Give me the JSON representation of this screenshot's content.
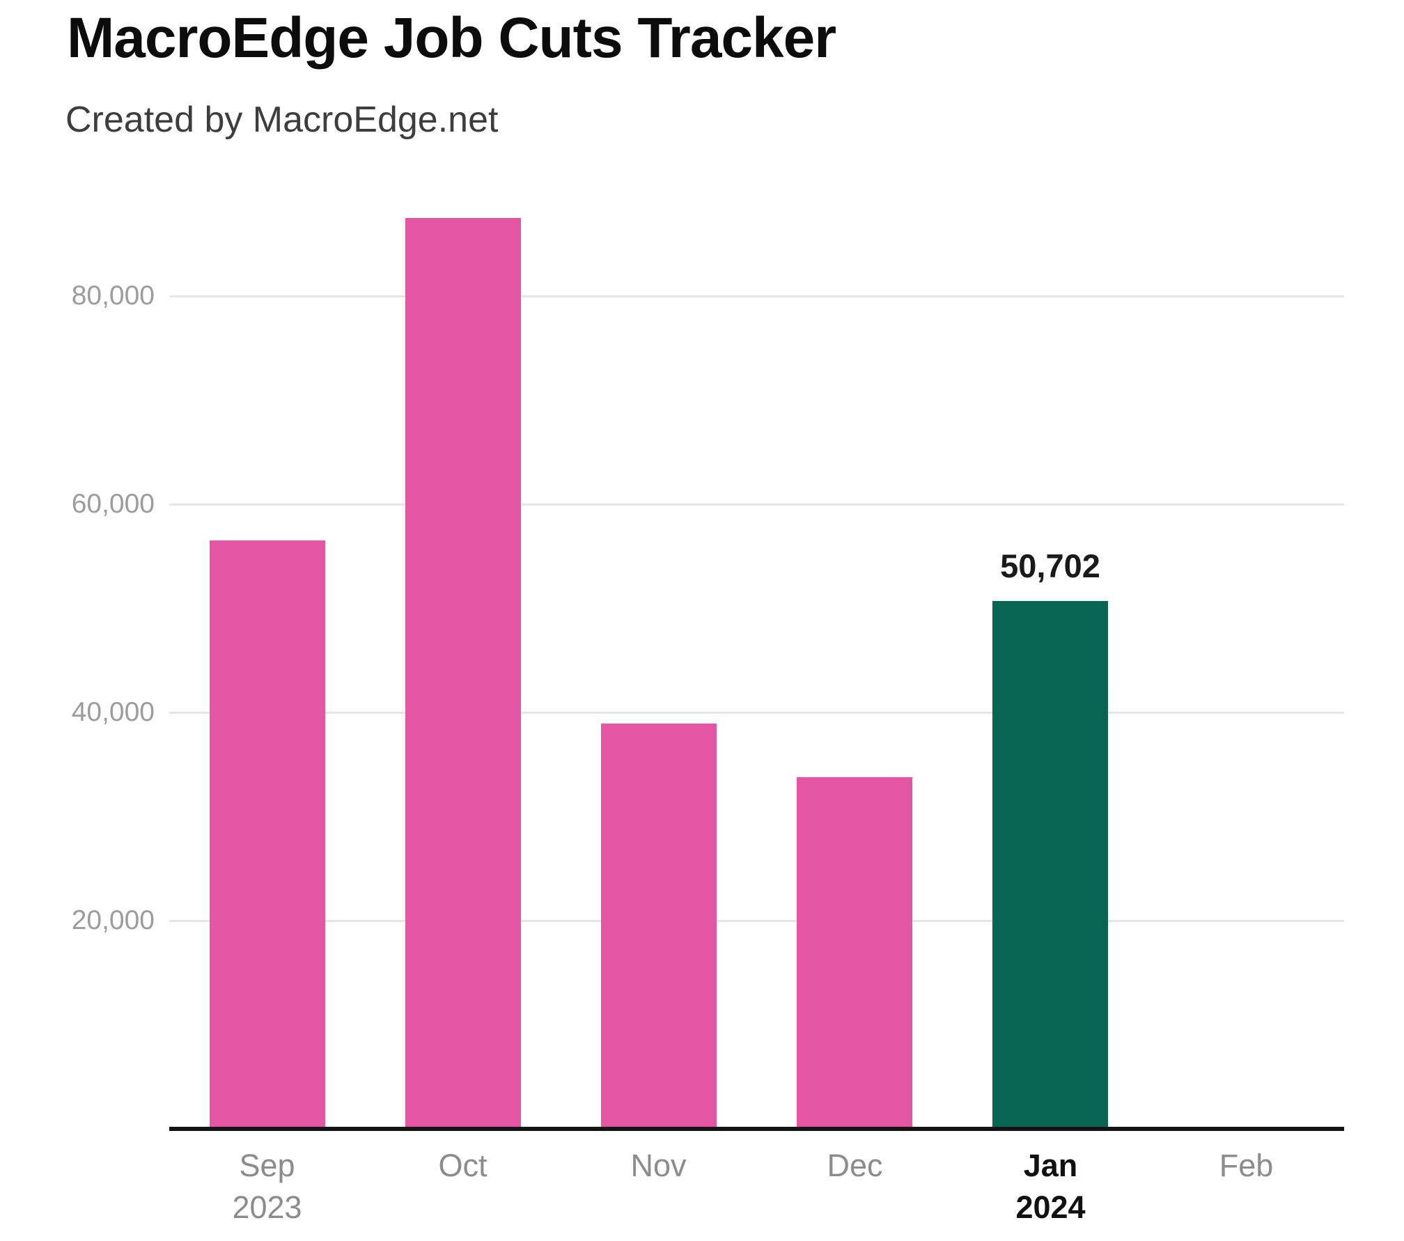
{
  "header": {
    "title": "MacroEdge Job Cuts Tracker",
    "subtitle": "Created by MacroEdge.net"
  },
  "chart_data": {
    "type": "bar",
    "title": "MacroEdge Job Cuts Tracker",
    "subtitle": "Created by MacroEdge.net",
    "categories": [
      "Sep 2023",
      "Oct",
      "Nov",
      "Dec",
      "Jan 2024",
      "Feb"
    ],
    "values": [
      56500,
      87500,
      38900,
      33800,
      50702,
      0
    ],
    "x_labels": [
      {
        "month": "Sep",
        "year": "2023",
        "emphasized": false
      },
      {
        "month": "Oct",
        "year": "",
        "emphasized": false
      },
      {
        "month": "Nov",
        "year": "",
        "emphasized": false
      },
      {
        "month": "Dec",
        "year": "",
        "emphasized": false
      },
      {
        "month": "Jan",
        "year": "2024",
        "emphasized": true
      },
      {
        "month": "Feb",
        "year": "",
        "emphasized": false
      }
    ],
    "yticks": [
      20000,
      40000,
      60000,
      80000
    ],
    "ytick_labels": [
      "20,000",
      "40,000",
      "60,000",
      "80,000"
    ],
    "ylim": [
      0,
      90000
    ],
    "grid": true,
    "legend": false,
    "xlabel": "",
    "ylabel": "",
    "bar_label": {
      "index": 4,
      "text": "50,702"
    },
    "highlight_index": 4,
    "colors": {
      "bar_default": "#e455a3",
      "bar_highlight": "#066653",
      "gridline": "#e6e6e6",
      "axis_line": "#141414",
      "ytick_text": "#9c9c9c",
      "xtick_text": "#8c8c8c",
      "xtick_emphasized_text": "#111111"
    }
  }
}
